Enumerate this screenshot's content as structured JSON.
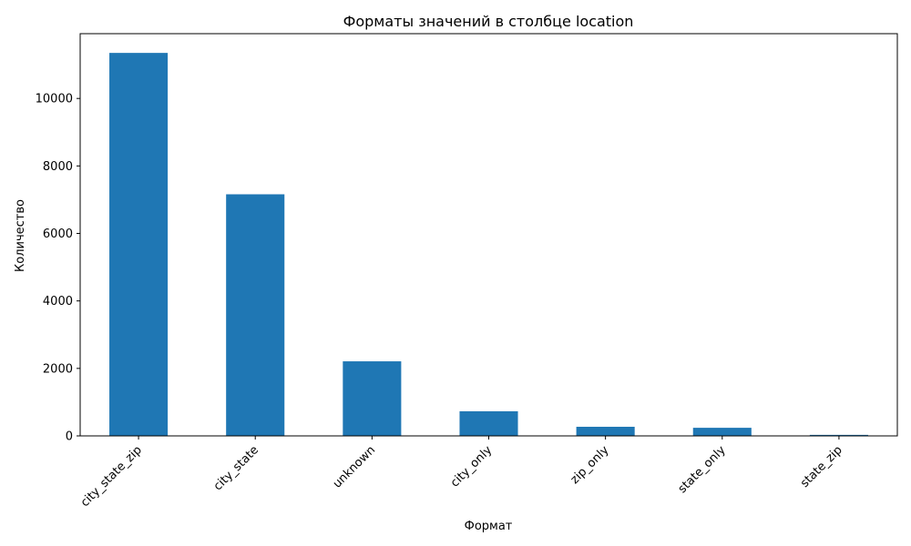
{
  "chart_data": {
    "type": "bar",
    "title": "Форматы значений в столбце location",
    "xlabel": "Формат",
    "ylabel": "Количество",
    "categories": [
      "city_state_zip",
      "city_state",
      "unknown",
      "city_only",
      "zip_only",
      "state_only",
      "state_zip"
    ],
    "values": [
      11350,
      7160,
      2210,
      730,
      270,
      240,
      30
    ],
    "ylim": [
      0,
      11920
    ],
    "yticks": [
      0,
      2000,
      4000,
      6000,
      8000,
      10000
    ],
    "grid": false,
    "legend": "none",
    "bar_color": "#1f77b4"
  }
}
